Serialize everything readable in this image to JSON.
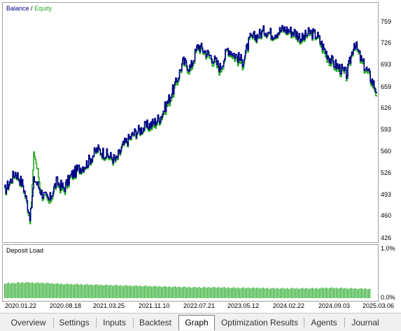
{
  "chart_data": [
    {
      "type": "line",
      "legend": [
        {
          "label": "Balance",
          "color": "#00008b"
        },
        {
          "label": "Equity",
          "color": "#22a722"
        }
      ],
      "legend_separator": "/",
      "ylim": [
        426,
        775
      ],
      "y_ticks": [
        "759",
        "726",
        "693",
        "659",
        "626",
        "593",
        "560",
        "526",
        "493",
        "460",
        "426"
      ],
      "x_ticks": [
        "2020.01.22",
        "2020.08.18",
        "2021.03.25",
        "2021.11.10",
        "2022.07.21",
        "2023.05.12",
        "2024.02.22",
        "2024.09.03",
        "2025.03.06"
      ],
      "grid": false,
      "series": [
        {
          "name": "Balance",
          "x": [
            0,
            0.03,
            0.05,
            0.07,
            0.08,
            0.1,
            0.12,
            0.14,
            0.16,
            0.18,
            0.2,
            0.22,
            0.25,
            0.28,
            0.3,
            0.32,
            0.35,
            0.38,
            0.4,
            0.42,
            0.44,
            0.46,
            0.48,
            0.5,
            0.52,
            0.54,
            0.56,
            0.58,
            0.6,
            0.62,
            0.64,
            0.66,
            0.68,
            0.7,
            0.72,
            0.75,
            0.78,
            0.8,
            0.82,
            0.84,
            0.86,
            0.88,
            0.9,
            0.92,
            0.94,
            0.96,
            0.98,
            1.0
          ],
          "y": [
            500,
            530,
            510,
            460,
            520,
            498,
            485,
            515,
            505,
            525,
            535,
            542,
            565,
            555,
            548,
            572,
            590,
            600,
            605,
            615,
            640,
            665,
            700,
            690,
            725,
            715,
            705,
            690,
            720,
            710,
            700,
            735,
            740,
            748,
            742,
            750,
            745,
            735,
            745,
            740,
            718,
            700,
            690,
            680,
            730,
            700,
            680,
            655
          ]
        },
        {
          "name": "Equity",
          "x": [
            0,
            0.03,
            0.05,
            0.07,
            0.08,
            0.1,
            0.12,
            0.14,
            0.16,
            0.18,
            0.2,
            0.22,
            0.25,
            0.28,
            0.3,
            0.32,
            0.35,
            0.38,
            0.4,
            0.42,
            0.44,
            0.46,
            0.48,
            0.5,
            0.52,
            0.54,
            0.56,
            0.58,
            0.6,
            0.62,
            0.64,
            0.66,
            0.68,
            0.7,
            0.72,
            0.75,
            0.78,
            0.8,
            0.82,
            0.84,
            0.86,
            0.88,
            0.9,
            0.92,
            0.94,
            0.96,
            0.98,
            1.0
          ],
          "y": [
            498,
            528,
            508,
            455,
            562,
            495,
            480,
            512,
            500,
            522,
            533,
            540,
            563,
            552,
            545,
            570,
            588,
            598,
            600,
            612,
            635,
            660,
            698,
            685,
            722,
            712,
            700,
            685,
            718,
            705,
            695,
            732,
            738,
            746,
            740,
            748,
            742,
            732,
            742,
            738,
            712,
            696,
            686,
            676,
            728,
            696,
            676,
            650
          ]
        }
      ]
    },
    {
      "type": "bar",
      "title": "Deposit Load",
      "ylim": [
        0,
        1.0
      ],
      "y_ticks": [
        "1.0%",
        "0.0%"
      ],
      "color": "#22a722",
      "profile": [
        0.3,
        0.32,
        0.31,
        0.29,
        0.28,
        0.27,
        0.26,
        0.25,
        0.24,
        0.23,
        0.22,
        0.22,
        0.21,
        0.21,
        0.2,
        0.2,
        0.2,
        0.21,
        0.2,
        0.19
      ]
    }
  ],
  "tabs": [
    {
      "label": "Overview",
      "active": false
    },
    {
      "label": "Settings",
      "active": false
    },
    {
      "label": "Inputs",
      "active": false
    },
    {
      "label": "Backtest",
      "active": false
    },
    {
      "label": "Graph",
      "active": true
    },
    {
      "label": "Optimization Results",
      "active": false
    },
    {
      "label": "Agents",
      "active": false
    },
    {
      "label": "Journal",
      "active": false
    }
  ]
}
